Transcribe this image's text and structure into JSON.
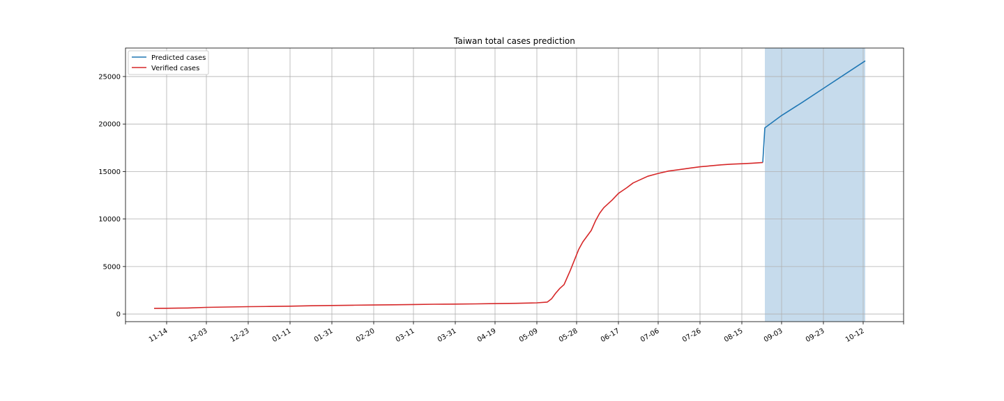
{
  "chart_data": {
    "type": "line",
    "title": "Taiwan total cases prediction",
    "xlabel": "",
    "ylabel": "",
    "x_tick_labels": [
      "11-14",
      "12-03",
      "12-23",
      "01-11",
      "01-31",
      "02-20",
      "03-11",
      "03-31",
      "04-19",
      "05-09",
      "05-28",
      "06-17",
      "07-06",
      "07-26",
      "08-15",
      "09-03",
      "09-23",
      "10-12"
    ],
    "ylim": [
      -800,
      28000
    ],
    "y_ticks": [
      0,
      5000,
      10000,
      15000,
      20000,
      25000
    ],
    "grid": true,
    "legend_position": "upper-left",
    "shaded_region": {
      "x_start": "08-26",
      "x_end": "10-13",
      "color": "#c6dbec"
    },
    "series": [
      {
        "name": "Predicted cases",
        "color": "#1f77b4",
        "points": [
          [
            "08-25",
            15950
          ],
          [
            "08-26",
            19600
          ],
          [
            "09-03",
            20900
          ],
          [
            "09-13",
            22300
          ],
          [
            "09-23",
            23750
          ],
          [
            "10-03",
            25200
          ],
          [
            "10-13",
            26650
          ]
        ]
      },
      {
        "name": "Verified cases",
        "color": "#d62728",
        "points": [
          [
            "11-08",
            600
          ],
          [
            "11-14",
            610
          ],
          [
            "11-24",
            640
          ],
          [
            "12-03",
            700
          ],
          [
            "12-13",
            740
          ],
          [
            "12-23",
            775
          ],
          [
            "01-01",
            800
          ],
          [
            "01-11",
            830
          ],
          [
            "01-21",
            870
          ],
          [
            "01-31",
            900
          ],
          [
            "02-10",
            930
          ],
          [
            "02-20",
            955
          ],
          [
            "03-01",
            975
          ],
          [
            "03-11",
            1000
          ],
          [
            "03-21",
            1030
          ],
          [
            "03-31",
            1050
          ],
          [
            "04-10",
            1070
          ],
          [
            "04-19",
            1100
          ],
          [
            "04-29",
            1130
          ],
          [
            "05-09",
            1180
          ],
          [
            "05-14",
            1260
          ],
          [
            "05-16",
            1600
          ],
          [
            "05-18",
            2200
          ],
          [
            "05-20",
            2700
          ],
          [
            "05-22",
            3100
          ],
          [
            "05-23",
            3600
          ],
          [
            "05-25",
            4600
          ],
          [
            "05-27",
            5700
          ],
          [
            "05-29",
            6800
          ],
          [
            "05-31",
            7600
          ],
          [
            "06-04",
            8800
          ],
          [
            "06-06",
            9800
          ],
          [
            "06-08",
            10600
          ],
          [
            "06-10",
            11200
          ],
          [
            "06-14",
            12000
          ],
          [
            "06-17",
            12700
          ],
          [
            "06-21",
            13300
          ],
          [
            "06-24",
            13800
          ],
          [
            "06-27",
            14100
          ],
          [
            "07-01",
            14500
          ],
          [
            "07-06",
            14800
          ],
          [
            "07-11",
            15050
          ],
          [
            "07-16",
            15200
          ],
          [
            "07-21",
            15350
          ],
          [
            "07-26",
            15500
          ],
          [
            "07-31",
            15600
          ],
          [
            "08-05",
            15700
          ],
          [
            "08-10",
            15780
          ],
          [
            "08-15",
            15820
          ],
          [
            "08-20",
            15880
          ],
          [
            "08-25",
            15950
          ]
        ]
      }
    ]
  }
}
